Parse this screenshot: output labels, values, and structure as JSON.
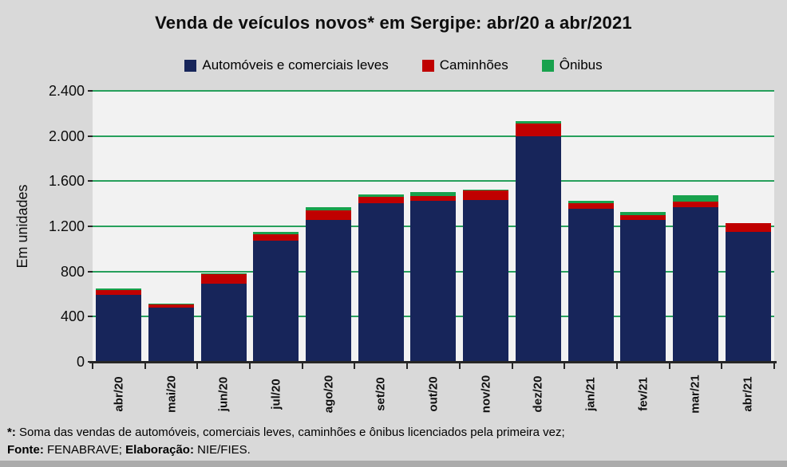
{
  "title": "Venda de veículos novos* em Sergipe: abr/20 a abr/2021",
  "legend": [
    {
      "label": "Automóveis e comerciais leves",
      "color": "#17255A"
    },
    {
      "label": "Caminhões",
      "color": "#C00000"
    },
    {
      "label": "Ônibus",
      "color": "#18A24D"
    }
  ],
  "colors": {
    "outer_background": "#D9D9D9",
    "plot_background": "#F2F2F2",
    "gridline": "#27A05C",
    "axis": "#262626",
    "series_navy": "#17255A",
    "series_red": "#C00000",
    "series_green": "#18A24D"
  },
  "y_axis": {
    "title": "Em unidades",
    "tick_labels": [
      "2.400",
      "2.000",
      "1.600",
      "1.200",
      "800",
      "400",
      "0"
    ],
    "max": 2400,
    "step": 400
  },
  "footer": {
    "note_label": "*:",
    "note_text": " Soma das vendas de automóveis, comerciais leves, caminhões e ônibus licenciados pela primeira vez;",
    "fonte_label": "Fonte:",
    "fonte_value": " FENABRAVE; ",
    "elab_label": "Elaboração:",
    "elab_value": " NIE/FIES."
  },
  "chart_data": {
    "type": "bar",
    "stacked": true,
    "title": "Venda de veículos novos* em Sergipe: abr/20 a abr/2021",
    "xlabel": "",
    "ylabel": "Em unidades",
    "ylim": [
      0,
      2400
    ],
    "ytick_step": 400,
    "grid": true,
    "legend_position": "top",
    "categories": [
      "abr/20",
      "mai/20",
      "jun/20",
      "jul/20",
      "ago/20",
      "set/20",
      "out/20",
      "nov/20",
      "dez/20",
      "jan/21",
      "fev/21",
      "mar/21",
      "abr/21"
    ],
    "series": [
      {
        "name": "Automóveis e comerciais leves",
        "color": "#17255A",
        "values": [
          590,
          478,
          692,
          1072,
          1258,
          1408,
          1424,
          1436,
          1998,
          1354,
          1258,
          1370,
          1148
        ]
      },
      {
        "name": "Caminhões",
        "color": "#C00000",
        "values": [
          48,
          32,
          85,
          60,
          84,
          56,
          42,
          80,
          114,
          54,
          42,
          48,
          78
        ]
      },
      {
        "name": "Ônibus",
        "color": "#18A24D",
        "values": [
          14,
          5,
          6,
          16,
          28,
          19,
          36,
          8,
          23,
          16,
          24,
          60,
          5
        ]
      }
    ],
    "totals": [
      652,
      515,
      783,
      1148,
      1370,
      1483,
      1502,
      1524,
      2135,
      1424,
      1324,
      1478,
      1231
    ]
  }
}
